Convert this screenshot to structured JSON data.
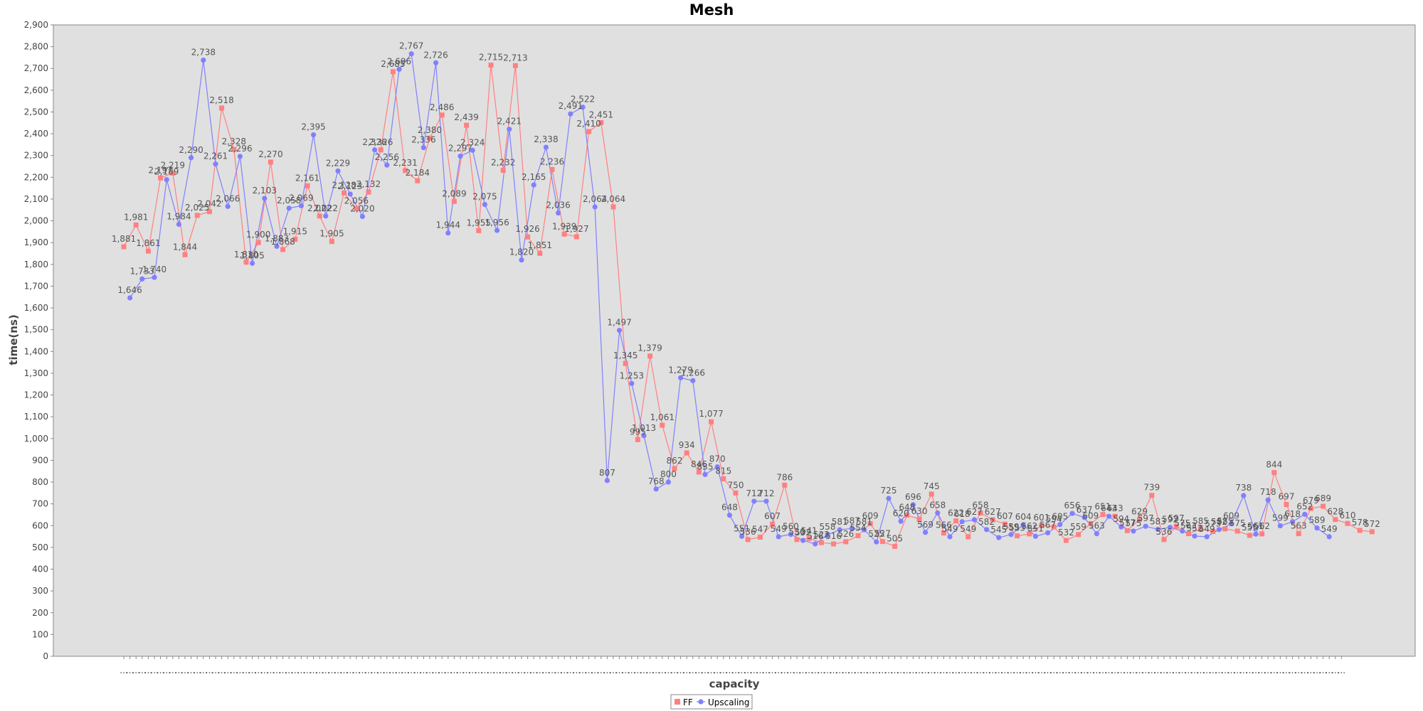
{
  "chart_data": {
    "type": "line",
    "title": "Mesh",
    "xlabel": "capacity",
    "ylabel": "time(ns)",
    "ylim": [
      0,
      2900
    ],
    "ytick_step": 100,
    "x_tick_label": "...",
    "grid": false,
    "legend_position": "bottom-center",
    "series": [
      {
        "name": "FF",
        "color": "#ff8080",
        "marker": "square",
        "values": [
          1881,
          1981,
          1861,
          2197,
          2219,
          1844,
          2025,
          2042,
          2518,
          2328,
          1810,
          1900,
          2270,
          1868,
          1915,
          2161,
          2022,
          1905,
          2128,
          2056,
          2132,
          2326,
          2685,
          2231,
          2184,
          2380,
          2486,
          2089,
          2439,
          1955,
          2715,
          2232,
          2713,
          1926,
          1851,
          2236,
          1939,
          1927,
          2410,
          2451,
          2064,
          1345,
          995,
          1379,
          1061,
          862,
          934,
          846,
          1077,
          815,
          750,
          536,
          547,
          607,
          786,
          536,
          541,
          522,
          516,
          526,
          554,
          609,
          527,
          505,
          648,
          630,
          745,
          566,
          622,
          549,
          658,
          627,
          607,
          553,
          562,
          601,
          594,
          532,
          559,
          609,
          651,
          643,
          577,
          629,
          739,
          536,
          597,
          563,
          585,
          573,
          585,
          575,
          555,
          562,
          844,
          697,
          563,
          679,
          689,
          628,
          610,
          578,
          572
        ],
        "labels": [
          "1,881",
          "1,981",
          "1,861",
          "2,197",
          "2,219",
          "1,844",
          "2,025",
          "2,042",
          "2,518",
          "2,328",
          "1,810",
          "1,900",
          "2,270",
          "1,868",
          "1,915",
          "2,161",
          "2,022",
          "1,905",
          "2,128",
          "2,056",
          "2,132",
          "2,326",
          "2,685",
          "2,231",
          "2,184",
          "2,380",
          "2,486",
          "2,089",
          "2,439",
          "1,955",
          "2,715",
          "2,232",
          "2,713",
          "1,926",
          "1,851",
          "2,236",
          "1,939",
          "1,927",
          "2,410",
          "2,451",
          "2,064",
          "1,345",
          "995",
          "1,379",
          "1,061",
          "862",
          "934",
          "846",
          "1,077",
          "815",
          "750",
          "536",
          "547",
          "607",
          "786",
          "536",
          "541",
          "522",
          "516",
          "526",
          "554",
          "609",
          "527",
          "505",
          "648",
          "630",
          "745",
          "566",
          "622",
          "549",
          "658",
          "627",
          "607",
          "553",
          "562",
          "601",
          "594",
          "532",
          "559",
          "609",
          "651",
          "643",
          "577",
          "629",
          "739",
          "536",
          "597",
          "563",
          "585",
          "573",
          "585",
          "575",
          "555",
          "562",
          "844",
          "697",
          "563",
          "679",
          "689",
          "628",
          "610",
          "578",
          "572"
        ]
      },
      {
        "name": "Upscaling",
        "color": "#8080ff",
        "marker": "circle",
        "values": [
          1646,
          1733,
          1740,
          2189,
          1984,
          2290,
          2738,
          2261,
          2066,
          2296,
          1805,
          2103,
          1883,
          2058,
          2069,
          2395,
          2022,
          2229,
          2123,
          2020,
          2326,
          2256,
          2696,
          2767,
          2336,
          2726,
          1944,
          2297,
          2324,
          2075,
          1956,
          2421,
          1820,
          2165,
          2338,
          2036,
          2491,
          2522,
          2064,
          807,
          1497,
          1253,
          1013,
          768,
          800,
          1279,
          1266,
          835,
          870,
          648,
          551,
          712,
          712,
          549,
          560,
          532,
          516,
          558,
          581,
          587,
          581,
          525,
          725,
          620,
          696,
          569,
          658,
          549,
          618,
          627,
          582,
          545,
          559,
          604,
          551,
          567,
          605,
          656,
          637,
          563,
          643,
          594,
          575,
          597,
          583,
          592,
          575,
          552,
          549,
          582,
          609,
          738,
          561,
          718,
          599,
          618,
          652,
          589,
          549
        ],
        "labels": [
          "1,646",
          "1,733",
          "1,740",
          "2,189",
          "1,984",
          "2,290",
          "2,738",
          "2,261",
          "2,066",
          "2,296",
          "1,805",
          "2,103",
          "1,883",
          "2,058",
          "2,069",
          "2,395",
          "2,022",
          "2,229",
          "2,123",
          "2,020",
          "2,326",
          "2,256",
          "2,696",
          "2,767",
          "2,336",
          "2,726",
          "1,944",
          "2,297",
          "2,324",
          "2,075",
          "1,956",
          "2,421",
          "1,820",
          "2,165",
          "2,338",
          "2,036",
          "2,491",
          "2,522",
          "2,064",
          "807",
          "1,497",
          "1,253",
          "1,013",
          "768",
          "800",
          "1,279",
          "1,266",
          "835",
          "870",
          "648",
          "551",
          "712",
          "712",
          "549",
          "560",
          "532",
          "516",
          "558",
          "581",
          "587",
          "581",
          "525",
          "725",
          "620",
          "696",
          "569",
          "658",
          "549",
          "618",
          "627",
          "582",
          "545",
          "559",
          "604",
          "551",
          "567",
          "605",
          "656",
          "637",
          "563",
          "643",
          "594",
          "575",
          "597",
          "583",
          "592",
          "575",
          "552",
          "549",
          "582",
          "609",
          "738",
          "561",
          "718",
          "599",
          "618",
          "652",
          "589",
          "549"
        ]
      }
    ]
  }
}
